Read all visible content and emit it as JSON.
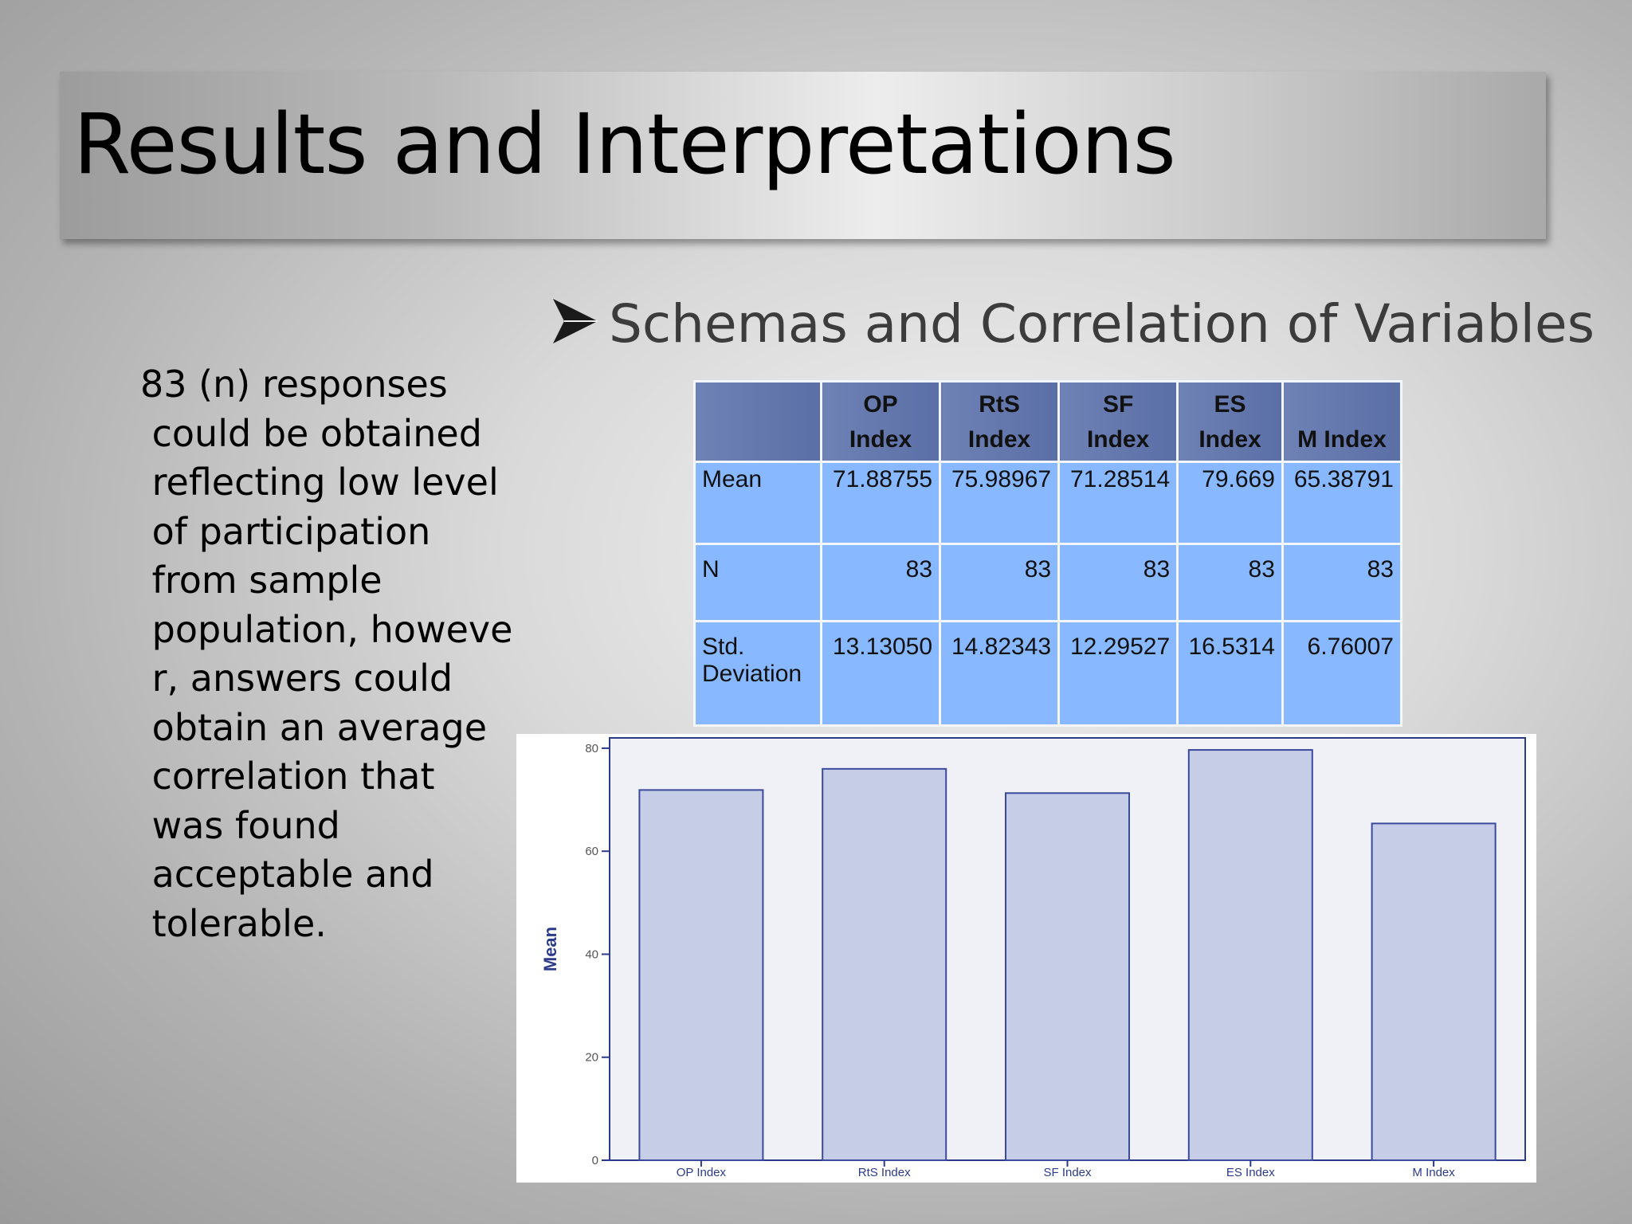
{
  "slide": {
    "title": "Results and Interpretations",
    "subtitle": "Schemas and Correlation of Variables",
    "bullet_icon": "arrow-bullet-icon",
    "body_lines": [
      "83 (n) responses",
      " could be obtained",
      " reflecting low level",
      " of participation",
      " from sample",
      " population, howeve",
      " r, answers could",
      " obtain an average",
      " correlation that",
      " was found",
      " acceptable and",
      " tolerable."
    ]
  },
  "table": {
    "headers": [
      {
        "line1": "",
        "line2": ""
      },
      {
        "line1": "OP",
        "line2": "Index"
      },
      {
        "line1": "RtS",
        "line2": "Index"
      },
      {
        "line1": "SF",
        "line2": "Index"
      },
      {
        "line1": "ES",
        "line2": "Index"
      },
      {
        "line1": "",
        "line2": "M Index"
      }
    ],
    "rows": [
      {
        "label_line1": "Mean",
        "label_line2": "",
        "values": [
          "71.88755",
          "75.98967",
          "71.28514",
          "79.669",
          "65.38791"
        ]
      },
      {
        "label_line1": "N",
        "label_line2": "",
        "values": [
          "83",
          "83",
          "83",
          "83",
          "83"
        ]
      },
      {
        "label_line1": "Std.",
        "label_line2": "Deviation",
        "values": [
          "13.13050",
          "14.82343",
          "12.29527",
          "16.5314",
          "6.76007"
        ]
      }
    ]
  },
  "chart_data": {
    "type": "bar",
    "categories": [
      "OP Index",
      "RtS Index",
      "SF Index",
      "ES Index",
      "M Index"
    ],
    "values": [
      71.88755,
      75.98967,
      71.28514,
      79.669,
      65.38791
    ],
    "ylabel": "Mean",
    "ylim": [
      0,
      82
    ],
    "yticks": [
      0,
      20,
      40,
      60,
      80
    ],
    "grid": false,
    "colors": {
      "bar_fill": "#c6cde6",
      "bar_stroke": "#3b4a9c",
      "plot_bg": "#f0f0f7",
      "axis": "#2c3a8a"
    }
  }
}
